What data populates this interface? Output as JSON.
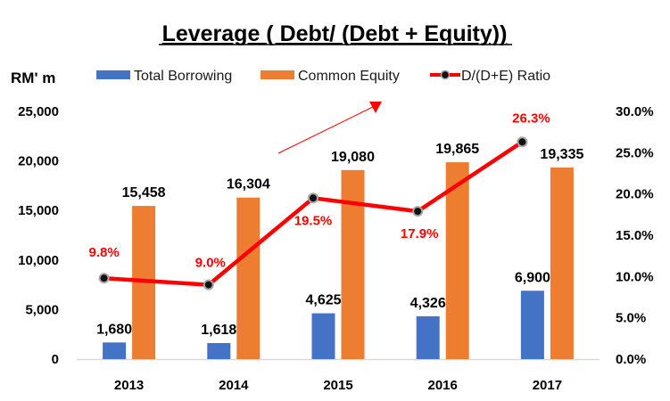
{
  "chart_data": {
    "type": "bar+line",
    "title": "Leverage ( Debt/ (Debt + Equity))",
    "ylabel": "RM' m",
    "y2label": "",
    "xlabel": "",
    "categories": [
      "2013",
      "2014",
      "2015",
      "2016",
      "2017"
    ],
    "series": [
      {
        "name": "Total Borrowing",
        "type": "bar",
        "axis": "left",
        "color": "#4472c4",
        "values": [
          1680,
          1618,
          4625,
          4326,
          6900
        ],
        "labels": [
          "1,680",
          "1,618",
          "4,625",
          "4,326",
          "6,900"
        ]
      },
      {
        "name": "Common Equity",
        "type": "bar",
        "axis": "left",
        "color": "#ed7d31",
        "values": [
          15458,
          16304,
          19080,
          19865,
          19335
        ],
        "labels": [
          "15,458",
          "16,304",
          "19,080",
          "19,865",
          "19,335"
        ]
      },
      {
        "name": "D/(D+E) Ratio",
        "type": "line",
        "axis": "right",
        "color": "#ff0000",
        "values": [
          9.8,
          9.0,
          19.5,
          17.9,
          26.3
        ],
        "labels": [
          "9.8%",
          "9.0%",
          "19.5%",
          "17.9%",
          "26.3%"
        ]
      }
    ],
    "ylim": [
      0,
      25000
    ],
    "y2lim": [
      0,
      30
    ],
    "yticks": [
      "0",
      "5,000",
      "10,000",
      "15,000",
      "20,000",
      "25,000"
    ],
    "y2ticks": [
      "0.0%",
      "5.0%",
      "10.0%",
      "15.0%",
      "20.0%",
      "25.0%",
      "30.0%"
    ],
    "grid": false,
    "legend_position": "top",
    "annotations": [
      {
        "type": "arrow",
        "color": "#ff0000",
        "direction": "up-right"
      }
    ]
  }
}
